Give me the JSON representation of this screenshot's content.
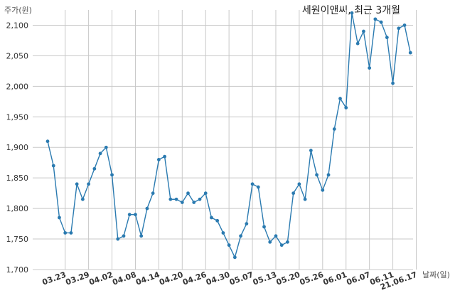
{
  "chart_data": {
    "type": "line",
    "title": "세원이앤씨, 최근 3개월",
    "ylabel": "주가(원)",
    "xlabel": "날짜(일)",
    "ylim": [
      1700,
      2125
    ],
    "yticks": [
      1700,
      1750,
      1800,
      1850,
      1900,
      1950,
      2000,
      2050,
      2100
    ],
    "ytick_labels": [
      "1,700",
      "1,750",
      "1,800",
      "1,850",
      "1,900",
      "1,950",
      "2,000",
      "2,050",
      "2,100"
    ],
    "xtick_labels": [
      "03.23",
      "03.29",
      "04.02",
      "04.08",
      "04.14",
      "04.20",
      "04.26",
      "04.30",
      "05.07",
      "05.13",
      "05.20",
      "05.26",
      "06.01",
      "06.07",
      "06.11",
      "21.06.17"
    ],
    "xtick_indices": [
      3,
      7,
      11,
      15,
      19,
      23,
      27,
      31,
      35,
      39,
      43,
      47,
      51,
      55,
      59,
      63
    ],
    "grid": true,
    "line_color": "#2a7ab0",
    "series": [
      {
        "values": [
          1910,
          1870,
          1785,
          1760,
          1760,
          1840,
          1815,
          1840,
          1865,
          1890,
          1900,
          1855,
          1750,
          1755,
          1790,
          1790,
          1755,
          1800,
          1825,
          1880,
          1885,
          1815,
          1815,
          1810,
          1825,
          1810,
          1815,
          1825,
          1785,
          1780,
          1760,
          1740,
          1720,
          1755,
          1775,
          1840,
          1835,
          1770,
          1745,
          1755,
          1740,
          1745,
          1825,
          1840,
          1815,
          1895,
          1855,
          1830,
          1855,
          1930,
          1980,
          1965,
          2120,
          2070,
          2090,
          2030,
          2110,
          2105,
          2080,
          2005,
          2095,
          2100,
          2055
        ]
      }
    ]
  }
}
